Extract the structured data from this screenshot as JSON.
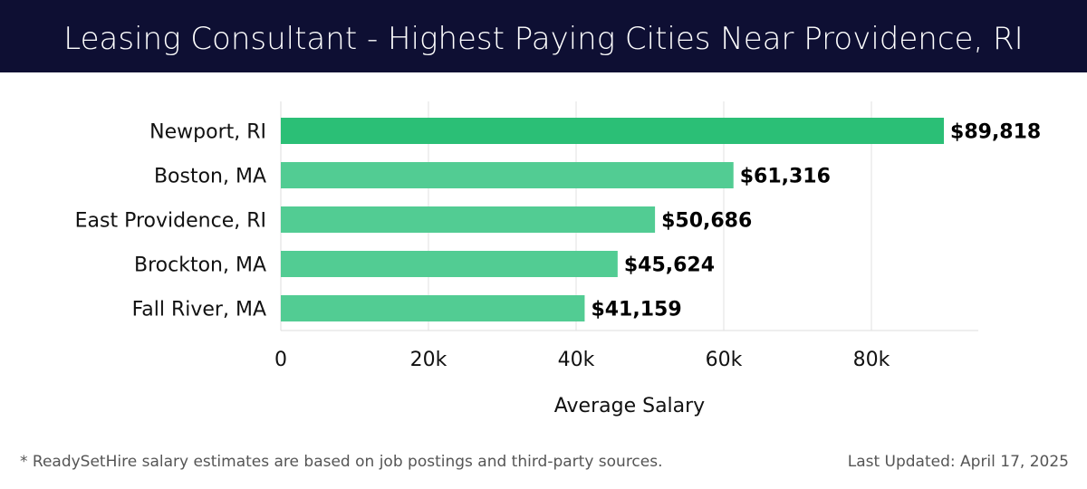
{
  "header": {
    "title": "Leasing Consultant - Highest Paying Cities Near Providence, RI"
  },
  "chart_data": {
    "type": "bar",
    "orientation": "horizontal",
    "categories": [
      "Newport, RI",
      "Boston, MA",
      "East Providence, RI",
      "Brockton, MA",
      "Fall River, MA"
    ],
    "values": [
      89818,
      61316,
      50686,
      45624,
      41159
    ],
    "value_labels": [
      "$89,818",
      "$61,316",
      "$50,686",
      "$45,624",
      "$41,159"
    ],
    "xlabel": "Average Salary",
    "ylabel": "",
    "xlim": [
      0,
      94000
    ],
    "xticks": [
      0,
      20000,
      40000,
      60000,
      80000
    ],
    "xtick_labels": [
      "0",
      "20k",
      "40k",
      "60k",
      "80k"
    ],
    "grid": true,
    "colors": {
      "top_bar": "#2bbf76",
      "bar": "#52cc93"
    }
  },
  "footer": {
    "note": "* ReadySetHire salary estimates are based on job postings and third-party sources.",
    "updated": "Last Updated: April 17, 2025"
  }
}
